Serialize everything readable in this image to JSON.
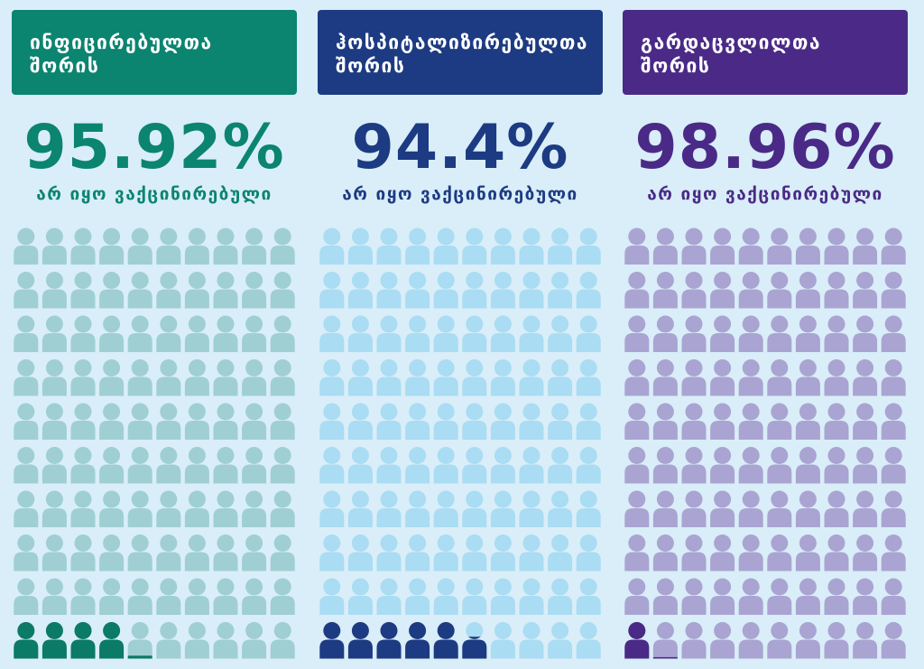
{
  "chart_data": [
    {
      "type": "pictogram",
      "title": "ინფიცირებულთა შორის",
      "value_label": "95.92%",
      "subtitle": "არ იყო ვაქცინირებული",
      "percent_highlighted": 4.08,
      "colors": {
        "header": "#0b8470",
        "accent": "#0b7a66",
        "icon": "#9fcfd2",
        "text": "#0b8470"
      }
    },
    {
      "type": "pictogram",
      "title": "ჰოსპიტალიზირებულთა შორის",
      "value_label": "94.4%",
      "subtitle": "არ იყო ვაქცინირებული",
      "percent_highlighted": 5.6,
      "colors": {
        "header": "#1d3b82",
        "accent": "#1d3b82",
        "icon": "#aadcf3",
        "text": "#1d3b82"
      }
    },
    {
      "type": "pictogram",
      "title": "გარდაცვლილთა შორის",
      "value_label": "98.96%",
      "subtitle": "არ იყო ვაქცინირებული",
      "percent_highlighted": 1.04,
      "colors": {
        "header": "#4a2a86",
        "accent": "#4a2a86",
        "icon": "#aaa4d2",
        "text": "#4a2a86"
      }
    }
  ]
}
